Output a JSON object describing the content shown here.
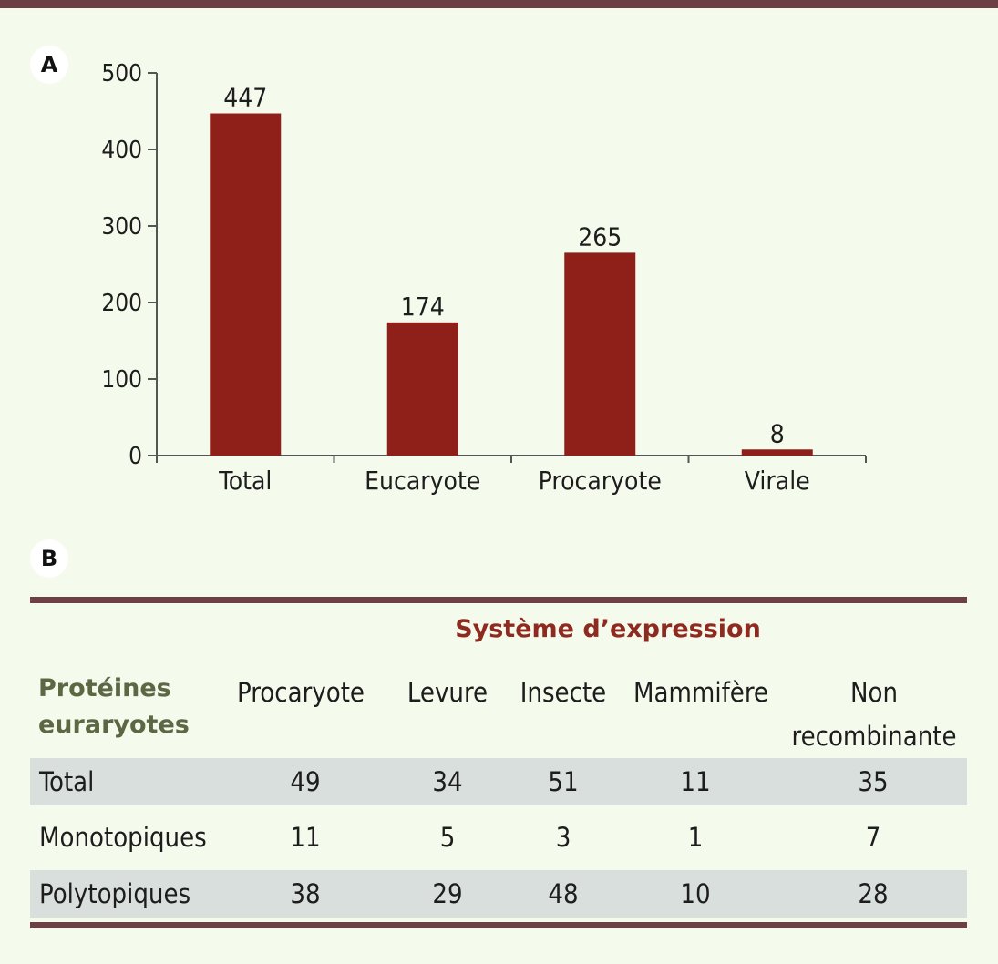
{
  "panels": {
    "a_label": "A",
    "b_label": "B"
  },
  "chart_data": {
    "type": "bar",
    "categories": [
      "Total",
      "Eucaryote",
      "Procaryote",
      "Virale"
    ],
    "values": [
      447,
      174,
      265,
      8
    ],
    "value_labels": [
      "447",
      "174",
      "265",
      "8"
    ],
    "ylim": [
      0,
      500
    ],
    "yticks": [
      0,
      100,
      200,
      300,
      400,
      500
    ],
    "bar_color": "#8e1f19",
    "grid": false
  },
  "table": {
    "group_title": "Système d’expression",
    "row_header": [
      "Protéines",
      "euraryotes"
    ],
    "columns": [
      "Procaryote",
      "Levure",
      "Insecte",
      "Mammifère",
      [
        "Non",
        "recombinante"
      ]
    ],
    "rows": [
      {
        "label": "Total",
        "values": [
          "49",
          "34",
          "51",
          "11",
          "35"
        ]
      },
      {
        "label": "Monotopiques",
        "values": [
          "11",
          "5",
          "3",
          "1",
          "7"
        ]
      },
      {
        "label": "Polytopiques",
        "values": [
          "38",
          "29",
          "48",
          "10",
          "28"
        ]
      }
    ],
    "colors": {
      "title": "#8e2a1f",
      "row_header": "#5b6843",
      "shade": "#d9dfdc",
      "rule": "#6e3f45"
    }
  }
}
